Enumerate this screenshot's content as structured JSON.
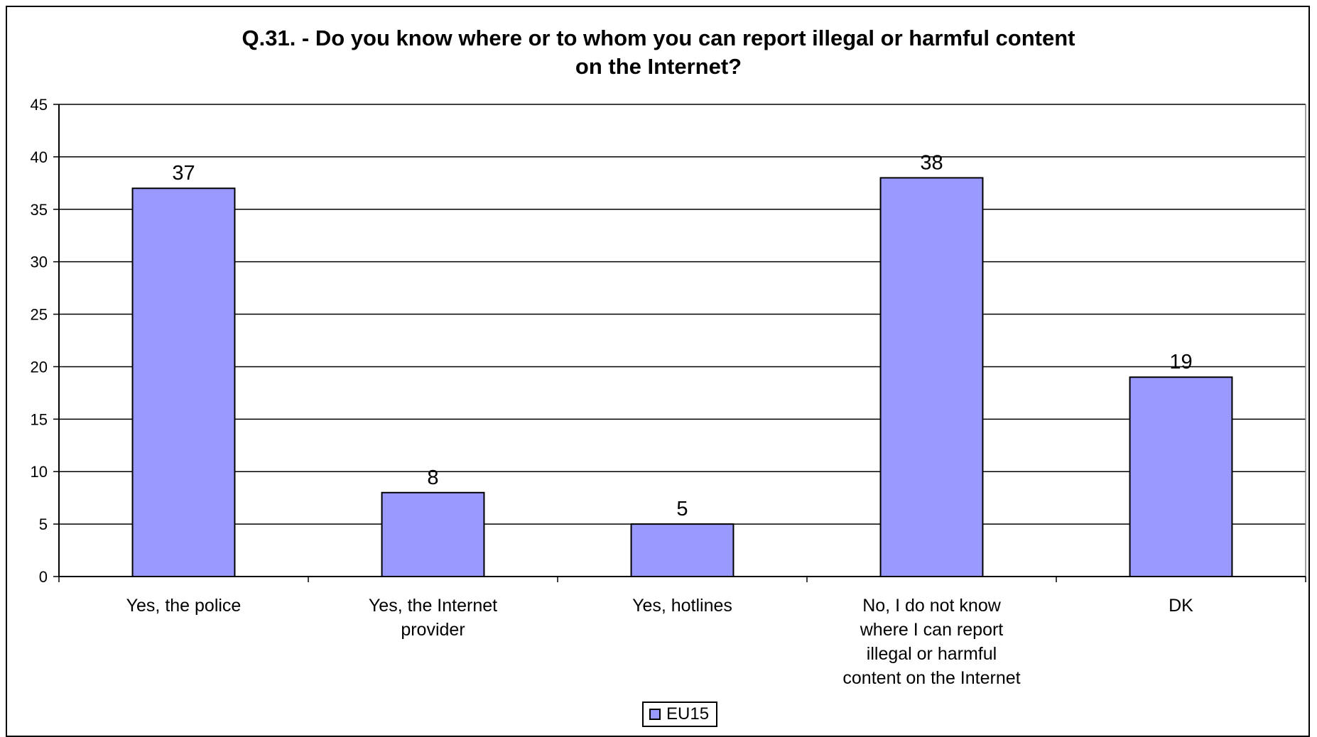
{
  "colors": {
    "bar_fill": "#9999ff",
    "bar_stroke": "#000000",
    "grid": "#000000",
    "background": "#ffffff"
  },
  "chart_data": {
    "type": "bar",
    "title": "Q.31. - Do you know where or to whom you can report illegal or harmful content on the Internet?",
    "title_lines": [
      "Q.31. - Do you know where or to whom you can report illegal or harmful content",
      "on the Internet?"
    ],
    "categories": [
      [
        "Yes, the police"
      ],
      [
        "Yes, the Internet",
        "provider"
      ],
      [
        "Yes, hotlines"
      ],
      [
        "No, I do not know",
        "where I can report",
        "illegal or harmful",
        "content on the Internet"
      ],
      [
        "DK"
      ]
    ],
    "series": [
      {
        "name": "EU15",
        "values": [
          37,
          8,
          5,
          38,
          19
        ]
      }
    ],
    "ylim": [
      0,
      45
    ],
    "yticks": [
      0,
      5,
      10,
      15,
      20,
      25,
      30,
      35,
      40,
      45
    ],
    "grid": true,
    "legend_position": "bottom",
    "xlabel": "",
    "ylabel": ""
  }
}
